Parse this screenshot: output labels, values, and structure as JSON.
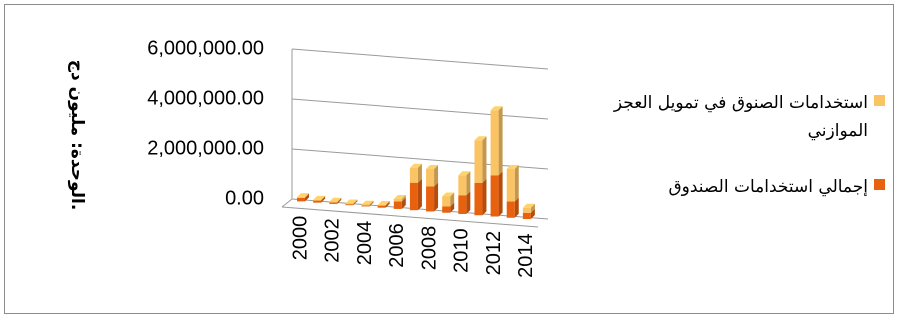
{
  "chart_data": {
    "type": "bar",
    "stacked": true,
    "three_d": true,
    "categories": [
      "2000",
      "2001",
      "2002",
      "2003",
      "2004",
      "2005",
      "2006",
      "2007",
      "2008",
      "2009",
      "2010",
      "2011",
      "2012",
      "2013",
      "2014"
    ],
    "x_tick_labels": [
      "2000",
      "2002",
      "2004",
      "2006",
      "2008",
      "2010",
      "2012",
      "2014"
    ],
    "ylabel": "الوحدة: مليون دج.",
    "ylim": [
      0,
      6000000
    ],
    "y_ticks": [
      0,
      2000000,
      4000000,
      6000000
    ],
    "y_tick_labels": [
      "0.00",
      "2,000,000.00",
      "4,000,000.00",
      "6,000,000.00"
    ],
    "grid": true,
    "legend_position": "right",
    "series": [
      {
        "name": "إجمالي استخدامات الصندوق",
        "color": "#e8610f",
        "values": [
          150000,
          100000,
          80000,
          60000,
          60000,
          100000,
          300000,
          1100000,
          1000000,
          250000,
          750000,
          1300000,
          1650000,
          650000,
          250000
        ]
      },
      {
        "name": "استخدامات الصنوق في تمويل العجز الموازني",
        "color": "#fac364",
        "values": [
          20000,
          10000,
          5000,
          5000,
          5000,
          10000,
          100000,
          600000,
          700000,
          400000,
          800000,
          1700000,
          2600000,
          1300000,
          200000
        ]
      }
    ]
  }
}
